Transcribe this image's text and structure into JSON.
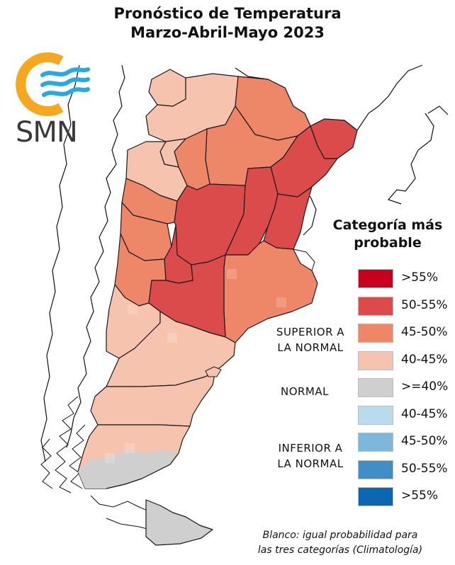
{
  "title": {
    "line1": "Pronóstico de Temperatura",
    "line2": "Marzo-Abril-Mayo 2023"
  },
  "logo": {
    "text": "SMN",
    "ring_color": "#f5a81d",
    "wave_color": "#29a9e1"
  },
  "legend": {
    "title_line1": "Categoría más",
    "title_line2": "probable",
    "items": [
      {
        "label": ">55%",
        "color": "#c8001e"
      },
      {
        "label": "50-55%",
        "color": "#dc4b4b"
      },
      {
        "label": "45-50%",
        "color": "#ee8668"
      },
      {
        "label": "40-45%",
        "color": "#f6c4ae"
      },
      {
        "label": ">=40%",
        "color": "#cfcfcf"
      },
      {
        "label": "40-45%",
        "color": "#b9dbee"
      },
      {
        "label": "45-50%",
        "color": "#7db8db"
      },
      {
        "label": "50-55%",
        "color": "#3f8fc7"
      },
      {
        "label": ">55%",
        "color": "#0d66b0"
      }
    ],
    "categories": {
      "superior_line1": "SUPERIOR A",
      "superior_line2": "LA NORMAL",
      "normal": "NORMAL",
      "inferior_line1": "INFERIOR A",
      "inferior_line2": "LA NORMAL"
    }
  },
  "note": {
    "line1": "Blanco: igual probabilidad para",
    "line2": "las tres categorías (Climatología)"
  }
}
